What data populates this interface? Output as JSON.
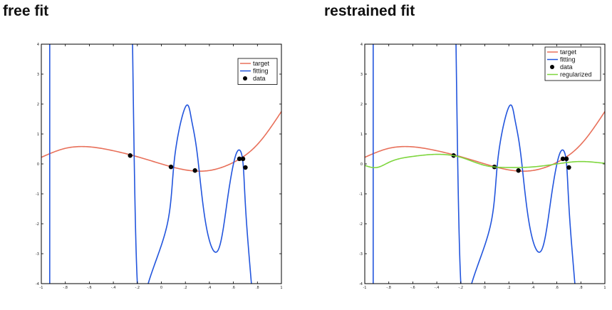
{
  "panels": [
    {
      "title": "free fit",
      "chart_data": {
        "type": "line",
        "xlim": [
          -1,
          1
        ],
        "ylim": [
          -4,
          4
        ],
        "xticks": [
          -1,
          -0.8,
          -0.6,
          -0.4,
          -0.2,
          0,
          0.2,
          0.4,
          0.6,
          0.8,
          1
        ],
        "yticks": [
          4,
          3,
          2,
          1,
          0,
          -1,
          -2,
          -3,
          -4
        ],
        "grid": false,
        "legend_position": "top-right",
        "series": [
          {
            "name": "target",
            "color": "#e8705a",
            "x": [
              -1,
              -0.8,
              -0.6,
              -0.4,
              -0.2,
              0,
              0.2,
              0.4,
              0.6,
              0.8,
              1
            ],
            "y": [
              0.22,
              0.52,
              0.57,
              0.44,
              0.24,
              0.0,
              -0.2,
              -0.22,
              0.05,
              0.65,
              1.75
            ]
          },
          {
            "name": "fitting",
            "color": "#2255dd",
            "x": [
              -0.93,
              -0.93,
              -0.24,
              -0.2,
              -0.11,
              0.05,
              0.11,
              0.2,
              0.25,
              0.3,
              0.37,
              0.47,
              0.55,
              0.62,
              0.67,
              0.69,
              0.71,
              0.75
            ],
            "y": [
              4.0,
              -4.0,
              4.0,
              -4.0,
              -4.0,
              -2.0,
              0.2,
              1.9,
              1.5,
              0.3,
              -2.0,
              -2.9,
              -1.2,
              0.3,
              0.3,
              -0.6,
              -2.0,
              -4.0
            ]
          },
          {
            "name": "data",
            "color": "#000000",
            "marker": "dot",
            "x": [
              -0.26,
              0.08,
              0.28,
              0.65,
              0.68,
              0.7
            ],
            "y": [
              0.28,
              -0.1,
              -0.22,
              0.17,
              0.17,
              -0.12
            ]
          }
        ]
      }
    },
    {
      "title": "restrained fit",
      "chart_data": {
        "type": "line",
        "xlim": [
          -1,
          1
        ],
        "ylim": [
          -4,
          4
        ],
        "xticks": [
          -1,
          -0.8,
          -0.6,
          -0.4,
          -0.2,
          0,
          0.2,
          0.4,
          0.6,
          0.8,
          1
        ],
        "yticks": [
          4,
          3,
          2,
          1,
          0,
          -1,
          -2,
          -3,
          -4
        ],
        "grid": false,
        "legend_position": "top-right",
        "series": [
          {
            "name": "target",
            "color": "#e8705a",
            "x": [
              -1,
              -0.8,
              -0.6,
              -0.4,
              -0.2,
              0,
              0.2,
              0.4,
              0.6,
              0.8,
              1
            ],
            "y": [
              0.22,
              0.52,
              0.57,
              0.44,
              0.24,
              0.0,
              -0.2,
              -0.22,
              0.05,
              0.65,
              1.75
            ]
          },
          {
            "name": "fitting",
            "color": "#2255dd",
            "x": [
              -0.93,
              -0.93,
              -0.24,
              -0.2,
              -0.11,
              0.05,
              0.11,
              0.2,
              0.25,
              0.3,
              0.37,
              0.47,
              0.55,
              0.62,
              0.67,
              0.69,
              0.71,
              0.75
            ],
            "y": [
              4.0,
              -4.0,
              4.0,
              -4.0,
              -4.0,
              -2.0,
              0.2,
              1.9,
              1.5,
              0.3,
              -2.0,
              -2.9,
              -1.2,
              0.3,
              0.3,
              -0.6,
              -2.0,
              -4.0
            ]
          },
          {
            "name": "data",
            "color": "#000000",
            "marker": "dot",
            "x": [
              -0.26,
              0.08,
              0.28,
              0.65,
              0.68,
              0.7
            ],
            "y": [
              0.28,
              -0.1,
              -0.22,
              0.17,
              0.17,
              -0.12
            ]
          },
          {
            "name": "regularized",
            "color": "#7ed63e",
            "x": [
              -1,
              -0.9,
              -0.8,
              -0.6,
              -0.4,
              -0.2,
              0,
              0.2,
              0.4,
              0.6,
              0.8,
              0.9,
              1
            ],
            "y": [
              -0.05,
              -0.12,
              0.05,
              0.25,
              0.32,
              0.22,
              -0.05,
              -0.12,
              -0.1,
              0.0,
              0.08,
              0.06,
              0.02
            ]
          }
        ]
      }
    }
  ]
}
